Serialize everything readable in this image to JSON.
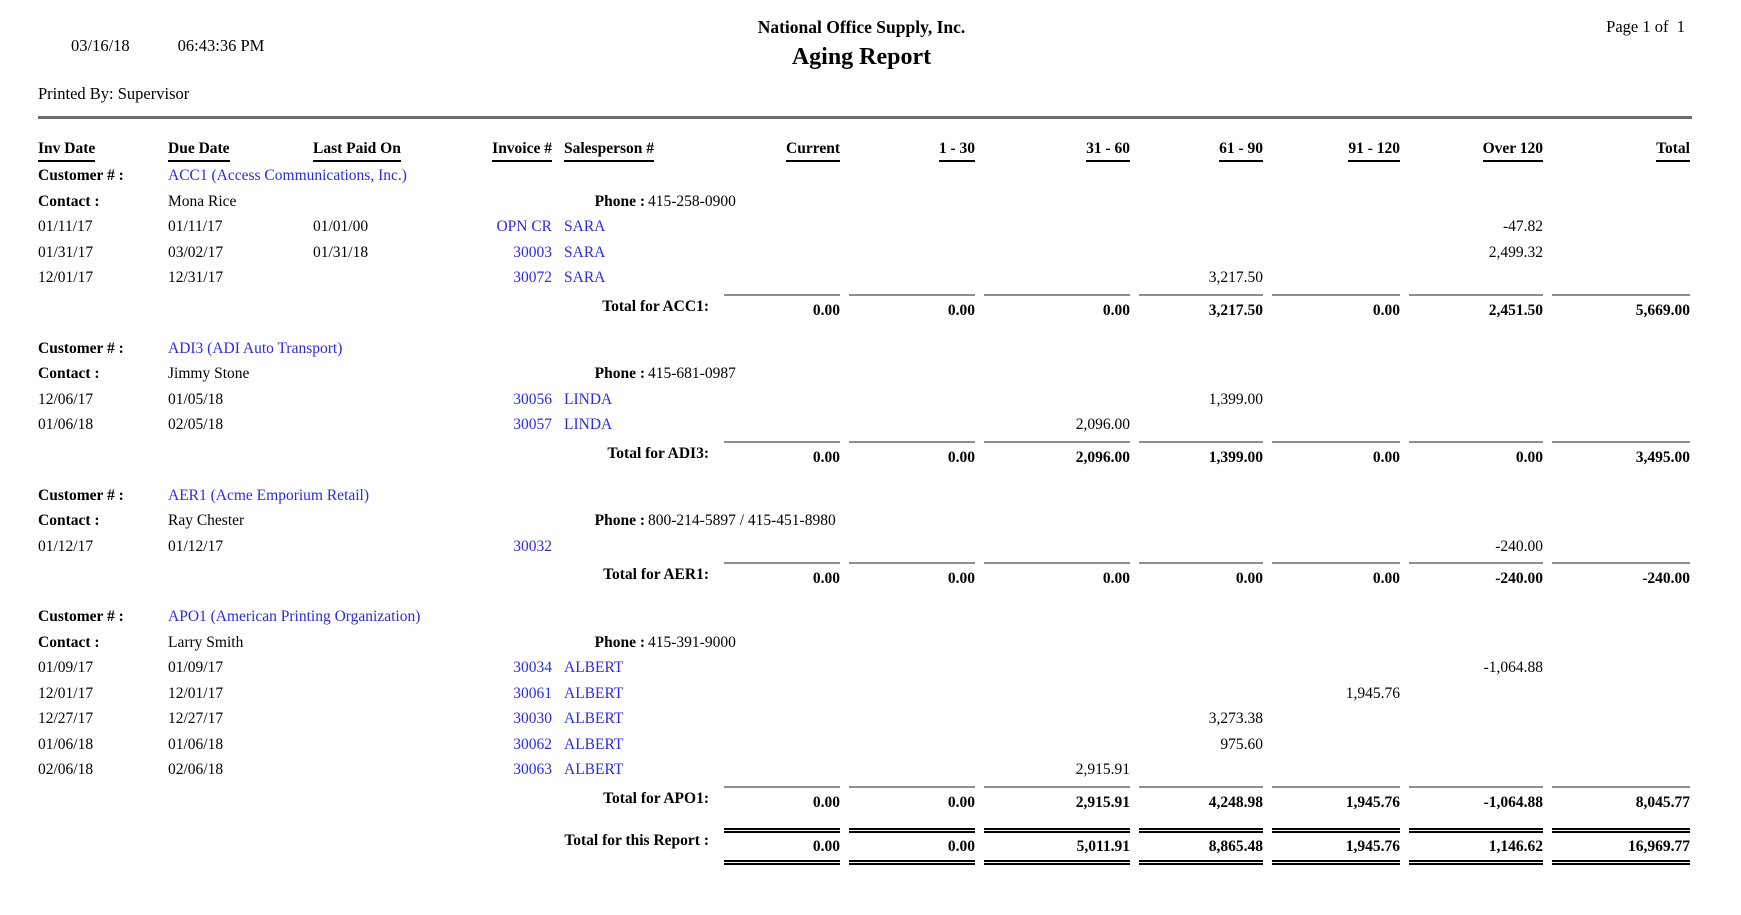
{
  "page": {
    "date": "03/16/18",
    "time": "06:43:36 PM",
    "printed_by": "Printed By: Supervisor",
    "company": "National Office Supply, Inc.",
    "title": "Aging Report",
    "page_label": "Page 1 of  1"
  },
  "colors": {
    "link_blue": "#2b2bdf",
    "rule_gray": "#8f8f8f",
    "divider_gray": "#6e6e6e"
  },
  "columns": [
    "Inv Date",
    "Due Date",
    "Last Paid On",
    "Invoice #",
    "Salesperson #",
    "Current",
    "1 - 30",
    "31 - 60",
    "61 - 90",
    "91 - 120",
    "Over 120",
    "Total"
  ],
  "labels": {
    "customer": "Customer # :",
    "contact": "Contact :",
    "phone": "Phone :",
    "report_total": "Total for this Report :"
  },
  "customers": [
    {
      "name": "ACC1 (Access Communications, Inc.)",
      "contact": "Mona Rice",
      "phone": "415-258-0900",
      "rows": [
        {
          "inv_date": "01/11/17",
          "due_date": "01/11/17",
          "last_paid_on": "01/01/00",
          "invoice": "OPN CR",
          "salesperson": "SARA",
          "amounts": [
            "",
            "",
            "",
            "",
            "",
            "-47.82",
            ""
          ]
        },
        {
          "inv_date": "01/31/17",
          "due_date": "03/02/17",
          "last_paid_on": "01/31/18",
          "invoice": "30003",
          "salesperson": "SARA",
          "amounts": [
            "",
            "",
            "",
            "",
            "",
            "2,499.32",
            ""
          ]
        },
        {
          "inv_date": "12/01/17",
          "due_date": "12/31/17",
          "last_paid_on": "",
          "invoice": "30072",
          "salesperson": "SARA",
          "amounts": [
            "",
            "",
            "",
            "3,217.50",
            "",
            "",
            ""
          ]
        }
      ],
      "total_label": "Total for ACC1:",
      "totals": [
        "0.00",
        "0.00",
        "0.00",
        "3,217.50",
        "0.00",
        "2,451.50",
        "5,669.00"
      ]
    },
    {
      "name": "ADI3 (ADI Auto Transport)",
      "contact": "Jimmy Stone",
      "phone": "415-681-0987",
      "rows": [
        {
          "inv_date": "12/06/17",
          "due_date": "01/05/18",
          "last_paid_on": "",
          "invoice": "30056",
          "salesperson": "LINDA",
          "amounts": [
            "",
            "",
            "",
            "1,399.00",
            "",
            "",
            ""
          ]
        },
        {
          "inv_date": "01/06/18",
          "due_date": "02/05/18",
          "last_paid_on": "",
          "invoice": "30057",
          "salesperson": "LINDA",
          "amounts": [
            "",
            "",
            "2,096.00",
            "",
            "",
            "",
            ""
          ]
        }
      ],
      "total_label": "Total for ADI3:",
      "totals": [
        "0.00",
        "0.00",
        "2,096.00",
        "1,399.00",
        "0.00",
        "0.00",
        "3,495.00"
      ]
    },
    {
      "name": "AER1 (Acme Emporium Retail)",
      "contact": "Ray Chester",
      "phone": "800-214-5897 / 415-451-8980",
      "rows": [
        {
          "inv_date": "01/12/17",
          "due_date": "01/12/17",
          "last_paid_on": "",
          "invoice": "30032",
          "salesperson": "",
          "amounts": [
            "",
            "",
            "",
            "",
            "",
            "-240.00",
            ""
          ]
        }
      ],
      "total_label": "Total for AER1:",
      "totals": [
        "0.00",
        "0.00",
        "0.00",
        "0.00",
        "0.00",
        "-240.00",
        "-240.00"
      ]
    },
    {
      "name": "APO1 (American Printing Organization)",
      "contact": "Larry Smith",
      "phone": "415-391-9000",
      "rows": [
        {
          "inv_date": "01/09/17",
          "due_date": "01/09/17",
          "last_paid_on": "",
          "invoice": "30034",
          "salesperson": "ALBERT",
          "amounts": [
            "",
            "",
            "",
            "",
            "",
            "-1,064.88",
            ""
          ]
        },
        {
          "inv_date": "12/01/17",
          "due_date": "12/01/17",
          "last_paid_on": "",
          "invoice": "30061",
          "salesperson": "ALBERT",
          "amounts": [
            "",
            "",
            "",
            "",
            "1,945.76",
            "",
            ""
          ]
        },
        {
          "inv_date": "12/27/17",
          "due_date": "12/27/17",
          "last_paid_on": "",
          "invoice": "30030",
          "salesperson": "ALBERT",
          "amounts": [
            "",
            "",
            "",
            "3,273.38",
            "",
            "",
            ""
          ]
        },
        {
          "inv_date": "01/06/18",
          "due_date": "01/06/18",
          "last_paid_on": "",
          "invoice": "30062",
          "salesperson": "ALBERT",
          "amounts": [
            "",
            "",
            "",
            "975.60",
            "",
            "",
            ""
          ]
        },
        {
          "inv_date": "02/06/18",
          "due_date": "02/06/18",
          "last_paid_on": "",
          "invoice": "30063",
          "salesperson": "ALBERT",
          "amounts": [
            "",
            "",
            "2,915.91",
            "",
            "",
            "",
            ""
          ]
        }
      ],
      "total_label": "Total for APO1:",
      "totals": [
        "0.00",
        "0.00",
        "2,915.91",
        "4,248.98",
        "1,945.76",
        "-1,064.88",
        "8,045.77"
      ]
    }
  ],
  "report_totals": [
    "0.00",
    "0.00",
    "5,011.91",
    "8,865.48",
    "1,945.76",
    "1,146.62",
    "16,969.77"
  ]
}
